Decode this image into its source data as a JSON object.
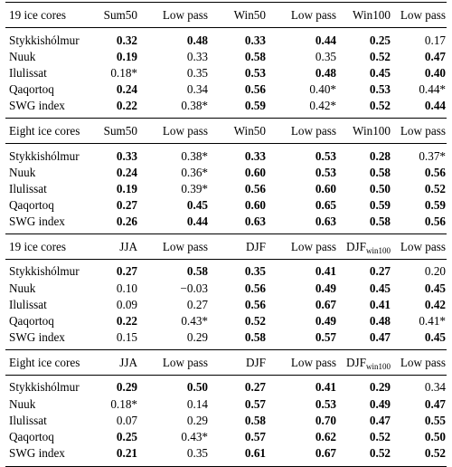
{
  "sections": [
    {
      "header": [
        "19 ice cores",
        "Sum50",
        "Low pass",
        "Win50",
        "Low pass",
        "Win100",
        "Low pass"
      ],
      "rows": [
        {
          "name": "Stykkishólmur",
          "cells": [
            {
              "v": "0.32",
              "b": true
            },
            {
              "v": "0.48",
              "b": true
            },
            {
              "v": "0.33",
              "b": true
            },
            {
              "v": "0.44",
              "b": true
            },
            {
              "v": "0.25",
              "b": true
            },
            {
              "v": "0.17",
              "b": false
            }
          ]
        },
        {
          "name": "Nuuk",
          "cells": [
            {
              "v": "0.19",
              "b": true
            },
            {
              "v": "0.33",
              "b": false
            },
            {
              "v": "0.58",
              "b": true
            },
            {
              "v": "0.35",
              "b": false
            },
            {
              "v": "0.52",
              "b": true
            },
            {
              "v": "0.47",
              "b": true
            }
          ]
        },
        {
          "name": "Ilulissat",
          "cells": [
            {
              "v": "0.18*",
              "b": false
            },
            {
              "v": "0.35",
              "b": false
            },
            {
              "v": "0.53",
              "b": true
            },
            {
              "v": "0.48",
              "b": true
            },
            {
              "v": "0.45",
              "b": true
            },
            {
              "v": "0.40",
              "b": true
            }
          ]
        },
        {
          "name": "Qaqortoq",
          "cells": [
            {
              "v": "0.24",
              "b": true
            },
            {
              "v": "0.34",
              "b": false
            },
            {
              "v": "0.56",
              "b": true
            },
            {
              "v": "0.40*",
              "b": false
            },
            {
              "v": "0.53",
              "b": true
            },
            {
              "v": "0.44*",
              "b": false
            }
          ]
        },
        {
          "name": "SWG index",
          "cells": [
            {
              "v": "0.22",
              "b": true
            },
            {
              "v": "0.38*",
              "b": false
            },
            {
              "v": "0.59",
              "b": true
            },
            {
              "v": "0.42*",
              "b": false
            },
            {
              "v": "0.52",
              "b": true
            },
            {
              "v": "0.44",
              "b": true
            }
          ]
        }
      ]
    },
    {
      "header": [
        "Eight ice cores",
        "Sum50",
        "Low pass",
        "Win50",
        "Low pass",
        "Win100",
        "Low pass"
      ],
      "rows": [
        {
          "name": "Stykkishólmur",
          "cells": [
            {
              "v": "0.33",
              "b": true
            },
            {
              "v": "0.38*",
              "b": false
            },
            {
              "v": "0.33",
              "b": true
            },
            {
              "v": "0.53",
              "b": true
            },
            {
              "v": "0.28",
              "b": true
            },
            {
              "v": "0.37*",
              "b": false
            }
          ]
        },
        {
          "name": "Nuuk",
          "cells": [
            {
              "v": "0.24",
              "b": true
            },
            {
              "v": "0.36*",
              "b": false
            },
            {
              "v": "0.60",
              "b": true
            },
            {
              "v": "0.53",
              "b": true
            },
            {
              "v": "0.58",
              "b": true
            },
            {
              "v": "0.56",
              "b": true
            }
          ]
        },
        {
          "name": "Ilulissat",
          "cells": [
            {
              "v": "0.19",
              "b": true
            },
            {
              "v": "0.39*",
              "b": false
            },
            {
              "v": "0.56",
              "b": true
            },
            {
              "v": "0.60",
              "b": true
            },
            {
              "v": "0.50",
              "b": true
            },
            {
              "v": "0.52",
              "b": true
            }
          ]
        },
        {
          "name": "Qaqortoq",
          "cells": [
            {
              "v": "0.27",
              "b": true
            },
            {
              "v": "0.45",
              "b": true
            },
            {
              "v": "0.60",
              "b": true
            },
            {
              "v": "0.65",
              "b": true
            },
            {
              "v": "0.59",
              "b": true
            },
            {
              "v": "0.59",
              "b": true
            }
          ]
        },
        {
          "name": "SWG index",
          "cells": [
            {
              "v": "0.26",
              "b": true
            },
            {
              "v": "0.44",
              "b": true
            },
            {
              "v": "0.63",
              "b": true
            },
            {
              "v": "0.63",
              "b": true
            },
            {
              "v": "0.58",
              "b": true
            },
            {
              "v": "0.56",
              "b": true
            }
          ]
        }
      ]
    },
    {
      "header": [
        "19 ice cores",
        "JJA",
        "Low pass",
        "DJF",
        "Low pass",
        "DJF",
        "Low pass"
      ],
      "header5_sub": "win100",
      "rows": [
        {
          "name": "Stykkishólmur",
          "cells": [
            {
              "v": "0.27",
              "b": true
            },
            {
              "v": "0.58",
              "b": true
            },
            {
              "v": "0.35",
              "b": true
            },
            {
              "v": "0.41",
              "b": true
            },
            {
              "v": "0.27",
              "b": true
            },
            {
              "v": "0.20",
              "b": false
            }
          ]
        },
        {
          "name": "Nuuk",
          "cells": [
            {
              "v": "0.10",
              "b": false
            },
            {
              "v": "−0.03",
              "b": false
            },
            {
              "v": "0.56",
              "b": true
            },
            {
              "v": "0.49",
              "b": true
            },
            {
              "v": "0.45",
              "b": true
            },
            {
              "v": "0.45",
              "b": true
            }
          ]
        },
        {
          "name": "Ilulissat",
          "cells": [
            {
              "v": "0.09",
              "b": false
            },
            {
              "v": "0.27",
              "b": false
            },
            {
              "v": "0.56",
              "b": true
            },
            {
              "v": "0.67",
              "b": true
            },
            {
              "v": "0.41",
              "b": true
            },
            {
              "v": "0.42",
              "b": true
            }
          ]
        },
        {
          "name": "Qaqortoq",
          "cells": [
            {
              "v": "0.22",
              "b": true
            },
            {
              "v": "0.43*",
              "b": false
            },
            {
              "v": "0.52",
              "b": true
            },
            {
              "v": "0.49",
              "b": true
            },
            {
              "v": "0.48",
              "b": true
            },
            {
              "v": "0.41*",
              "b": false
            }
          ]
        },
        {
          "name": "SWG index",
          "cells": [
            {
              "v": "0.15",
              "b": false
            },
            {
              "v": "0.29",
              "b": false
            },
            {
              "v": "0.58",
              "b": true
            },
            {
              "v": "0.57",
              "b": true
            },
            {
              "v": "0.47",
              "b": true
            },
            {
              "v": "0.45",
              "b": true
            }
          ]
        }
      ]
    },
    {
      "header": [
        "Eight ice cores",
        "JJA",
        "Low pass",
        "DJF",
        "Low pass",
        "DJF",
        "Low pass"
      ],
      "header5_sub": "win100",
      "rows": [
        {
          "name": "Stykkishólmur",
          "cells": [
            {
              "v": "0.29",
              "b": true
            },
            {
              "v": "0.50",
              "b": true
            },
            {
              "v": "0.27",
              "b": true
            },
            {
              "v": "0.41",
              "b": true
            },
            {
              "v": "0.29",
              "b": true
            },
            {
              "v": "0.34",
              "b": false
            }
          ]
        },
        {
          "name": "Nuuk",
          "cells": [
            {
              "v": "0.18*",
              "b": false
            },
            {
              "v": "0.14",
              "b": false
            },
            {
              "v": "0.57",
              "b": true
            },
            {
              "v": "0.53",
              "b": true
            },
            {
              "v": "0.49",
              "b": true
            },
            {
              "v": "0.47",
              "b": true
            }
          ]
        },
        {
          "name": "Ilulissat",
          "cells": [
            {
              "v": "0.07",
              "b": false
            },
            {
              "v": "0.29",
              "b": false
            },
            {
              "v": "0.58",
              "b": true
            },
            {
              "v": "0.70",
              "b": true
            },
            {
              "v": "0.47",
              "b": true
            },
            {
              "v": "0.55",
              "b": true
            }
          ]
        },
        {
          "name": "Qaqortoq",
          "cells": [
            {
              "v": "0.25",
              "b": true
            },
            {
              "v": "0.43*",
              "b": false
            },
            {
              "v": "0.57",
              "b": true
            },
            {
              "v": "0.62",
              "b": true
            },
            {
              "v": "0.52",
              "b": true
            },
            {
              "v": "0.50",
              "b": true
            }
          ]
        },
        {
          "name": "SWG index",
          "cells": [
            {
              "v": "0.21",
              "b": true
            },
            {
              "v": "0.35",
              "b": false
            },
            {
              "v": "0.61",
              "b": true
            },
            {
              "v": "0.67",
              "b": true
            },
            {
              "v": "0.52",
              "b": true
            },
            {
              "v": "0.52",
              "b": true
            }
          ]
        }
      ]
    }
  ]
}
